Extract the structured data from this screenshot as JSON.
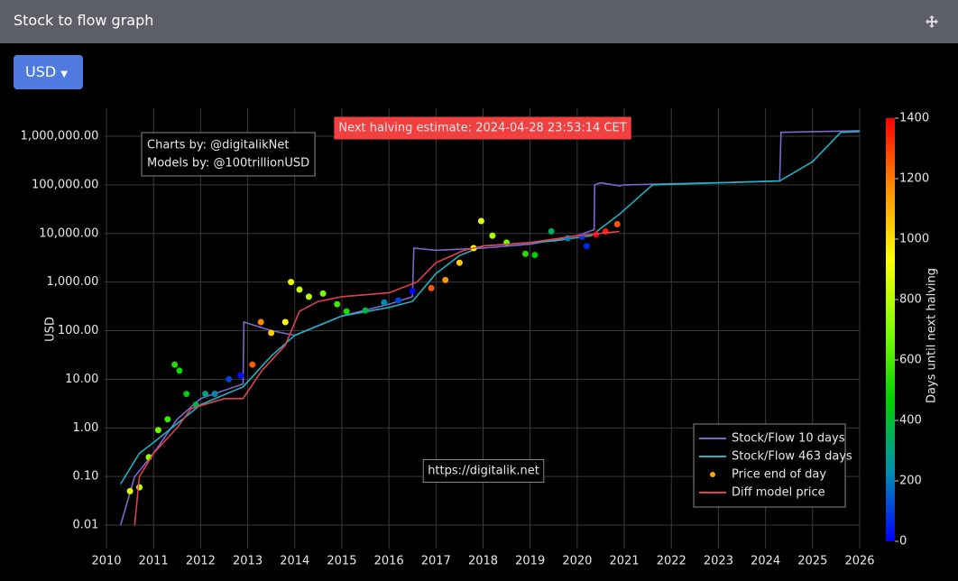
{
  "header": {
    "title": "Stock to flow graph"
  },
  "currency_button": "USD",
  "chart_data": {
    "type": "line",
    "y_label": "USD",
    "log_y": true,
    "grid": true,
    "legend_corner": "bottom-right",
    "xlim": [
      2009.95,
      2026
    ],
    "xticks": [
      2010,
      2011,
      2012,
      2013,
      2014,
      2015,
      2016,
      2017,
      2018,
      2019,
      2020,
      2021,
      2022,
      2023,
      2024,
      2025,
      2026
    ],
    "ylim": [
      0.0033,
      3760000
    ],
    "yticks": [
      {
        "value": 0.01,
        "label": "0.01"
      },
      {
        "value": 0.1,
        "label": "0.10"
      },
      {
        "value": 1,
        "label": "1.00"
      },
      {
        "value": 10,
        "label": "10.00"
      },
      {
        "value": 100,
        "label": "100.00"
      },
      {
        "value": 1000,
        "label": "1,000.00"
      },
      {
        "value": 10000,
        "label": "10,000.00"
      },
      {
        "value": 100000,
        "label": "100,000.00"
      },
      {
        "value": 1000000,
        "label": "1,000,000.00"
      }
    ],
    "annotations": [
      "Next halving estimate: 2024-04-28 23:53:14 CET",
      "Charts by: @digitalikNet",
      "Models by: @100trillionUSD",
      "https://digitalik.net"
    ],
    "colorbar": {
      "title": "Days until next halving",
      "range": [
        0,
        1400
      ],
      "ticks": [
        0,
        200,
        400,
        600,
        800,
        1000,
        1200,
        1400
      ],
      "colorscale": [
        "#0000ff",
        "#0090b0",
        "#00d000",
        "#80ff00",
        "#ffff00",
        "#ff9000",
        "#ff0000"
      ]
    },
    "series": [
      {
        "name": "Stock/Flow 10 days",
        "color": "#7b68c8",
        "kind": "line",
        "x": [
          2010.3,
          2010.6,
          2011,
          2011.5,
          2012,
          2012.9,
          2012.92,
          2013.5,
          2014,
          2015,
          2016,
          2016.5,
          2016.53,
          2017,
          2018,
          2019,
          2020,
          2020.36,
          2020.37,
          2020.5,
          2020.9,
          2021,
          2022,
          2023,
          2024.3,
          2024.33,
          2026
        ],
        "values": [
          0.01,
          0.1,
          0.3,
          1.5,
          4,
          8,
          150,
          100,
          80,
          200,
          350,
          500,
          5000,
          4500,
          5000,
          6000,
          9000,
          12000,
          100000,
          110000,
          95000,
          100000,
          105000,
          110000,
          120000,
          1200000,
          1300000
        ]
      },
      {
        "name": "Stock/Flow 463 days",
        "color": "#20b2c0",
        "kind": "line",
        "x": [
          2010.3,
          2010.7,
          2011,
          2012,
          2012.9,
          2013.5,
          2014,
          2015,
          2016,
          2016.5,
          2017,
          2017.5,
          2018,
          2019.5,
          2020.3,
          2020.9,
          2021.6,
          2024.3,
          2025,
          2025.6,
          2026
        ],
        "values": [
          0.07,
          0.3,
          0.5,
          3,
          7,
          30,
          80,
          200,
          300,
          400,
          1500,
          3500,
          5500,
          7000,
          9000,
          25000,
          100000,
          120000,
          300000,
          1200000,
          1250000
        ]
      },
      {
        "name": "Price end of day",
        "color": "#ffa500",
        "kind": "points",
        "x": [
          2010.5,
          2010.7,
          2010.9,
          2011.1,
          2011.3,
          2011.45,
          2011.55,
          2011.7,
          2011.9,
          2012.1,
          2012.3,
          2012.6,
          2012.85,
          2013.1,
          2013.28,
          2013.5,
          2013.8,
          2013.92,
          2014.1,
          2014.3,
          2014.6,
          2014.9,
          2015.1,
          2015.5,
          2015.9,
          2016.2,
          2016.5,
          2016.9,
          2017.2,
          2017.5,
          2017.8,
          2017.96,
          2018.2,
          2018.5,
          2018.9,
          2019.1,
          2019.45,
          2019.8,
          2020.1,
          2020.2,
          2020.4,
          2020.6,
          2020.85
        ],
        "values": [
          0.05,
          0.06,
          0.25,
          0.9,
          1.5,
          20,
          15,
          5,
          3,
          5,
          5,
          10,
          12,
          20,
          150,
          90,
          150,
          1000,
          700,
          500,
          580,
          350,
          250,
          260,
          380,
          420,
          650,
          750,
          1100,
          2500,
          5000,
          18000,
          9000,
          6500,
          3800,
          3600,
          11000,
          8000,
          8500,
          5500,
          9500,
          11000,
          15500
        ],
        "days": [
          880,
          807,
          734,
          661,
          588,
          533,
          496,
          442,
          369,
          296,
          223,
          113,
          22,
          1249,
          1183,
          1040,
          931,
          887,
          821,
          807,
          697,
          588,
          518,
          372,
          226,
          117,
          7,
          1264,
          1154,
          1044,
          934,
          876,
          788,
          679,
          533,
          460,
          332,
          204,
          95,
          58,
          1434,
          1361,
          1270
        ]
      },
      {
        "name": "Diff model price",
        "color": "#e04050",
        "kind": "line",
        "x": [
          2010.6,
          2010.7,
          2011,
          2011.5,
          2011.8,
          2012.5,
          2012.9,
          2013.3,
          2013.8,
          2014.1,
          2014.5,
          2015,
          2016,
          2016.6,
          2017,
          2017.6,
          2018,
          2019,
          2020,
          2020.9
        ],
        "values": [
          0.01,
          0.1,
          0.3,
          1,
          2.5,
          4,
          4,
          15,
          50,
          250,
          400,
          500,
          600,
          1000,
          2500,
          4500,
          5500,
          6500,
          9000,
          11000
        ]
      }
    ]
  }
}
